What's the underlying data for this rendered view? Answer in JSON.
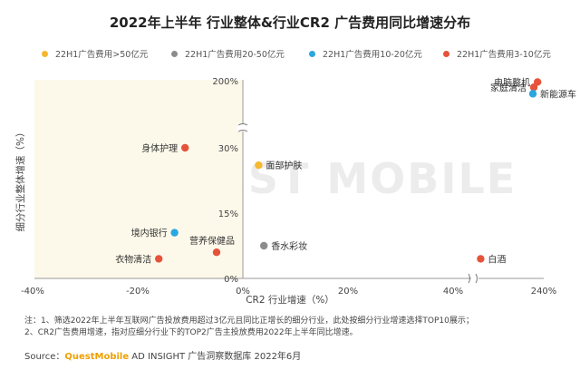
{
  "title": "2022年上半年 行业整体&行业CR2 广告费用同比增速分布",
  "legend": [
    {
      "label": "22H1广告费用>50亿元",
      "color": "#f5b82e"
    },
    {
      "label": "22H1广告费用20-50亿元",
      "color": "#8c8c8c"
    },
    {
      "label": "22H1广告费用10-20亿元",
      "color": "#2aa7e0"
    },
    {
      "label": "22H1广告费用3-10亿元",
      "color": "#e5533a"
    }
  ],
  "watermark": "QUEST MOBILE",
  "chart_data": {
    "type": "scatter",
    "xlabel": "CR2 行业增速（%）",
    "ylabel": "细分行业整体增速（%）",
    "x_ticks": [
      "-40%",
      "-20%",
      "0%",
      "20%",
      "40%",
      "240%"
    ],
    "y_ticks": [
      "0%",
      "15%",
      "30%",
      "200%"
    ],
    "x_axis_break": "between 40% and 240%",
    "y_axis_break": "between 30% and 200%",
    "points": [
      {
        "name": "电脑整机",
        "x": 230,
        "y": 193,
        "group": "22H1广告费用3-10亿元"
      },
      {
        "name": "家庭清洁",
        "x": 218,
        "y": 180,
        "group": "22H1广告费用3-10亿元"
      },
      {
        "name": "新能源车",
        "x": 215,
        "y": 164,
        "group": "22H1广告费用10-20亿元"
      },
      {
        "name": "身体护理",
        "x": -11,
        "y": 30,
        "group": "22H1广告费用3-10亿元"
      },
      {
        "name": "面部护肤",
        "x": 3,
        "y": 26,
        "group": "22H1广告费用>50亿元"
      },
      {
        "name": "境内银行",
        "x": -13,
        "y": 10.5,
        "group": "22H1广告费用10-20亿元"
      },
      {
        "name": "营养保健品",
        "x": -5,
        "y": 6,
        "group": "22H1广告费用3-10亿元"
      },
      {
        "name": "香水彩妆",
        "x": 4,
        "y": 7.5,
        "group": "22H1广告费用20-50亿元"
      },
      {
        "name": "衣物清洁",
        "x": -16,
        "y": 4.5,
        "group": "22H1广告费用3-10亿元"
      },
      {
        "name": "白酒",
        "x": 47,
        "y": 4.5,
        "group": "22H1广告费用3-10亿元"
      }
    ]
  },
  "notes": [
    "注：1、筛选2022年上半年互联网广告投放费用超过3亿元且同比正增长的细分行业，此处按细分行业增速选择TOP10展示；",
    "2、CR2广告费用增速，指对应细分行业下的TOP2广告主投放费用2022年上半年同比增速。"
  ],
  "source": {
    "prefix": "Source：",
    "brand": "QuestMobile",
    "text": " AD INSIGHT 广告洞察数据库 2022年6月"
  }
}
